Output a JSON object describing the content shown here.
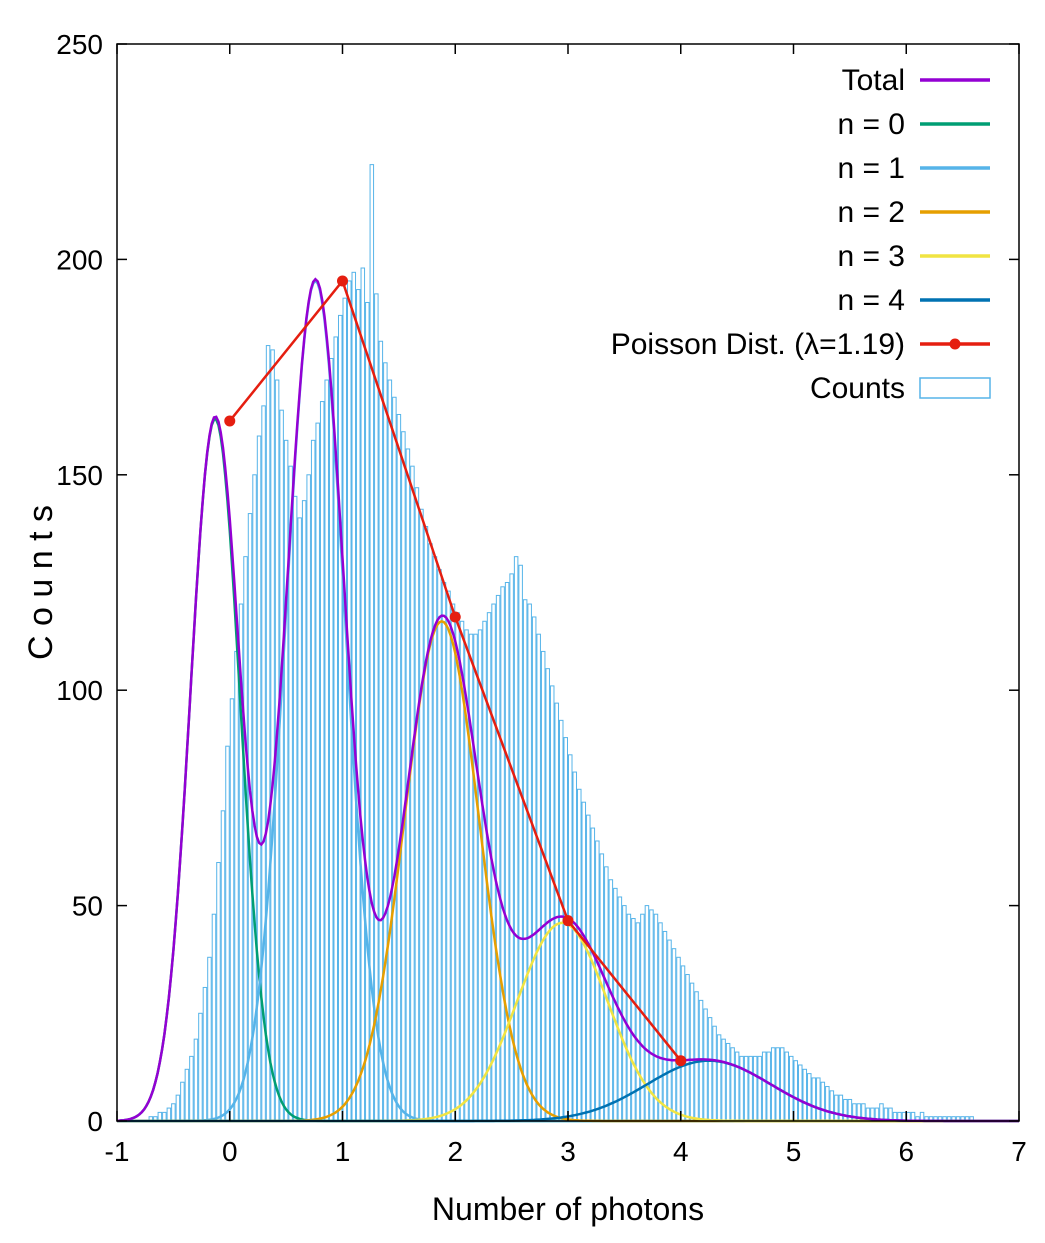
{
  "chart_data": {
    "type": "bar",
    "title": "",
    "xlabel": "Number of photons",
    "ylabel": "C o u n t s",
    "xlim": [
      -1,
      7
    ],
    "ylim": [
      0,
      250
    ],
    "x_ticks": [
      -1,
      0,
      1,
      2,
      3,
      4,
      5,
      6,
      7
    ],
    "x_tick_labels": [
      "-1",
      "0",
      "1",
      "2",
      "3",
      "4",
      "5",
      "6",
      "7"
    ],
    "y_ticks": [
      0,
      50,
      100,
      150,
      200,
      250
    ],
    "y_tick_labels": [
      "0",
      "50",
      "100",
      "150",
      "200",
      "250"
    ],
    "grid": false,
    "legend_position": "top-right",
    "histogram": {
      "name": "Counts",
      "color": "#56b4e9",
      "bin_width": 0.04,
      "x_start": -1.0,
      "values": [
        0,
        0,
        0,
        0,
        0,
        0,
        0,
        1,
        1,
        2,
        2,
        3,
        4,
        6,
        9,
        12,
        15,
        19,
        25,
        31,
        38,
        48,
        60,
        72,
        87,
        98,
        109,
        120,
        131,
        141,
        150,
        159,
        166,
        180,
        179,
        172,
        165,
        158,
        152,
        145,
        140,
        144,
        150,
        158,
        162,
        167,
        172,
        177,
        182,
        187,
        191,
        195,
        197,
        193,
        198,
        190,
        222,
        192,
        181,
        176,
        172,
        168,
        164,
        160,
        156,
        152,
        147,
        142,
        138,
        134,
        131,
        128,
        125,
        123,
        120,
        118,
        116,
        114,
        113,
        113,
        114,
        116,
        118,
        120,
        122,
        124,
        125,
        127,
        131,
        129,
        121,
        120,
        117,
        113,
        109,
        105,
        101,
        97,
        93,
        89,
        85,
        81,
        77,
        74,
        71,
        68,
        65,
        62,
        59,
        56,
        54,
        52,
        50,
        48,
        47,
        46,
        48,
        50,
        49,
        48,
        46,
        44,
        42,
        40,
        38,
        36,
        34,
        32,
        30,
        28,
        26,
        24,
        22,
        20,
        19,
        18,
        17,
        16,
        15,
        15,
        15,
        15,
        15,
        16,
        16,
        17,
        17,
        17,
        16,
        15,
        14,
        13,
        12,
        11,
        10,
        10,
        9,
        8,
        7,
        6,
        6,
        5,
        5,
        4,
        4,
        4,
        3,
        3,
        3,
        4,
        3,
        3,
        2,
        2,
        2,
        2,
        2,
        1,
        2,
        1,
        1,
        1,
        1,
        1,
        1,
        1,
        1,
        1,
        1,
        1,
        0,
        0,
        0,
        0,
        0,
        0,
        0,
        0,
        0
      ]
    },
    "series": [
      {
        "name": "Total",
        "color": "#9400d3",
        "type": "curve"
      },
      {
        "name": "n = 0",
        "color": "#009e73",
        "type": "gaussian",
        "amplitude": 163,
        "center": -0.13,
        "sigma": 0.22
      },
      {
        "name": "n = 1",
        "color": "#56b4e9",
        "type": "gaussian",
        "amplitude": 195,
        "center": 0.76,
        "sigma": 0.26
      },
      {
        "name": "n = 2",
        "color": "#e69f00",
        "type": "gaussian",
        "amplitude": 116,
        "center": 1.88,
        "sigma": 0.33
      },
      {
        "name": "n = 3",
        "color": "#f0e442",
        "type": "gaussian",
        "amplitude": 46,
        "center": 2.95,
        "sigma": 0.4
      },
      {
        "name": "n = 4",
        "color": "#0072b2",
        "type": "gaussian",
        "amplitude": 14,
        "center": 4.25,
        "sigma": 0.55
      },
      {
        "name": "Poisson Dist. (λ=1.19)",
        "color": "#e51e10",
        "type": "line-points",
        "x": [
          0,
          1,
          2,
          3,
          4
        ],
        "y": [
          162.5,
          195,
          117,
          46.5,
          14
        ]
      }
    ]
  }
}
